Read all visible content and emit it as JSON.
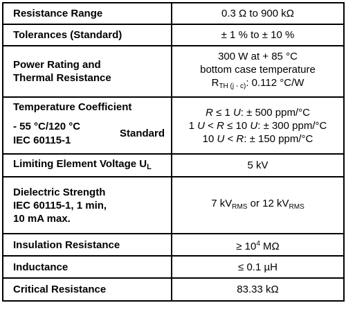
{
  "rows": [
    {
      "label": "Resistance Range",
      "value": "0.3 Ω to 900 kΩ"
    },
    {
      "label": "Tolerances (Standard)",
      "value": "± 1 % to ± 10 %"
    },
    {
      "label_lines": [
        "Power Rating and",
        "Thermal Resistance"
      ],
      "value_lines": [
        "300 W at + 85 °C",
        "bottom case temperature"
      ],
      "rth_prefix": "R",
      "rth_sub": "TH (j - c)",
      "rth_suffix": ": 0.112 °C/W"
    },
    {
      "label_title": "Temperature Coefficient",
      "label_temp": "- 55 °C/120 °C",
      "label_iec": "IEC 60115-1",
      "label_standard": "Standard",
      "lines": [
        {
          "var": "R",
          "text": " ≤ 1 ",
          "unit": "U",
          "rest": ": ± 500 ppm/°C",
          "pre": ""
        },
        {
          "pre": "1 ",
          "unit": "U",
          "mid": " < ",
          "var": "R",
          "text": " ≤ 10 ",
          "unit2": "U",
          "rest": ": ± 300 ppm/°C"
        },
        {
          "pre": "10 ",
          "unit": "U",
          "mid": " < ",
          "var": "R",
          "rest": ": ± 150 ppm/°C"
        }
      ]
    },
    {
      "label": "Limiting Element Voltage U",
      "label_sub": "L",
      "value": "5 kV"
    },
    {
      "label_lines": [
        "Dielectric Strength",
        "IEC 60115-1, 1 min,",
        "10 mA max."
      ],
      "v1": "7 kV",
      "v1_sub": "RMS",
      "or": " or ",
      "v2": "12 kV",
      "v2_sub": "RMS"
    },
    {
      "label": "Insulation Resistance",
      "pre": "≥ 10",
      "sup": "4",
      "post": " MΩ"
    },
    {
      "label": "Inductance",
      "value": "≤ 0.1 µH"
    },
    {
      "label": "Critical Resistance",
      "value": "83.33 kΩ"
    }
  ]
}
